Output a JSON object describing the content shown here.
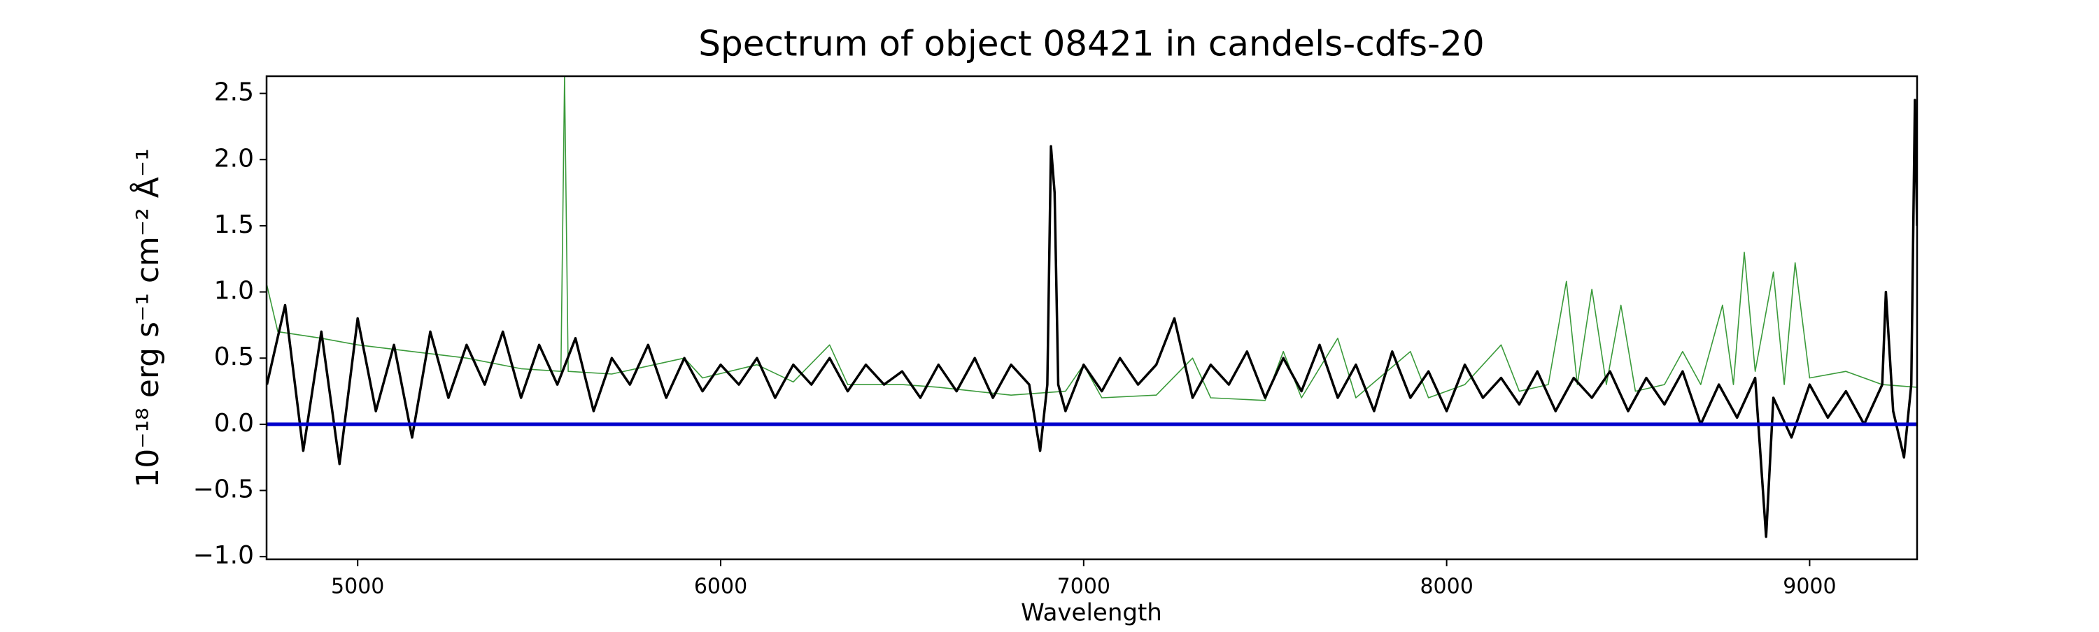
{
  "chart_data": {
    "type": "line",
    "title": "Spectrum of object 08421 in candels-cdfs-20",
    "xlabel": "Wavelength",
    "ylabel": "10⁻¹⁸ erg s⁻¹ cm⁻² Å⁻¹",
    "xlim": [
      4749,
      9296
    ],
    "ylim": [
      -1.02,
      2.63
    ],
    "xticks": [
      5000,
      6000,
      7000,
      8000,
      9000
    ],
    "yticks": [
      {
        "value": -1.0,
        "label": "−1.0"
      },
      {
        "value": -0.5,
        "label": "−0.5"
      },
      {
        "value": 0.0,
        "label": "0.0"
      },
      {
        "value": 0.5,
        "label": "0.5"
      },
      {
        "value": 1.0,
        "label": "1.0"
      },
      {
        "value": 1.5,
        "label": "1.5"
      },
      {
        "value": 2.0,
        "label": "2.0"
      },
      {
        "value": 2.5,
        "label": "2.5"
      }
    ],
    "series": [
      {
        "color": "#3a9a3a",
        "width": 1.6,
        "x": [
          4750,
          4780,
          4900,
          5000,
          5150,
          5300,
          5450,
          5560,
          5570,
          5580,
          5700,
          5900,
          5950,
          6100,
          6200,
          6300,
          6350,
          6500,
          6600,
          6700,
          6800,
          6950,
          7000,
          7050,
          7200,
          7300,
          7350,
          7500,
          7550,
          7600,
          7700,
          7750,
          7900,
          7950,
          8050,
          8150,
          8200,
          8280,
          8330,
          8360,
          8400,
          8440,
          8480,
          8520,
          8600,
          8650,
          8700,
          8760,
          8790,
          8820,
          8850,
          8900,
          8930,
          8960,
          9000,
          9100,
          9200,
          9296
        ],
        "values": [
          1.05,
          0.7,
          0.65,
          0.6,
          0.55,
          0.5,
          0.42,
          0.4,
          2.63,
          0.4,
          0.38,
          0.5,
          0.35,
          0.45,
          0.32,
          0.6,
          0.3,
          0.3,
          0.28,
          0.25,
          0.22,
          0.25,
          0.45,
          0.2,
          0.22,
          0.5,
          0.2,
          0.18,
          0.55,
          0.2,
          0.65,
          0.2,
          0.55,
          0.2,
          0.3,
          0.6,
          0.25,
          0.3,
          1.08,
          0.3,
          1.02,
          0.3,
          0.9,
          0.25,
          0.3,
          0.55,
          0.3,
          0.9,
          0.3,
          1.3,
          0.4,
          1.15,
          0.3,
          1.22,
          0.35,
          0.4,
          0.3,
          0.28
        ]
      },
      {
        "color": "#000000",
        "width": 3.5,
        "x": [
          4750,
          4800,
          4850,
          4900,
          4950,
          5000,
          5050,
          5100,
          5150,
          5200,
          5250,
          5300,
          5350,
          5400,
          5450,
          5500,
          5550,
          5600,
          5650,
          5700,
          5750,
          5800,
          5850,
          5900,
          5950,
          6000,
          6050,
          6100,
          6150,
          6200,
          6250,
          6300,
          6350,
          6400,
          6450,
          6500,
          6550,
          6600,
          6650,
          6700,
          6750,
          6800,
          6850,
          6880,
          6900,
          6910,
          6920,
          6930,
          6950,
          7000,
          7050,
          7100,
          7150,
          7200,
          7250,
          7300,
          7350,
          7400,
          7450,
          7500,
          7550,
          7600,
          7650,
          7700,
          7750,
          7800,
          7850,
          7900,
          7950,
          8000,
          8050,
          8100,
          8150,
          8200,
          8250,
          8300,
          8350,
          8400,
          8450,
          8500,
          8550,
          8600,
          8650,
          8700,
          8750,
          8800,
          8850,
          8880,
          8900,
          8950,
          9000,
          9050,
          9100,
          9150,
          9200,
          9210,
          9230,
          9260,
          9280,
          9290,
          9296
        ],
        "values": [
          0.3,
          0.9,
          -0.2,
          0.7,
          -0.3,
          0.8,
          0.1,
          0.6,
          -0.1,
          0.7,
          0.2,
          0.6,
          0.3,
          0.7,
          0.2,
          0.6,
          0.3,
          0.65,
          0.1,
          0.5,
          0.3,
          0.6,
          0.2,
          0.5,
          0.25,
          0.45,
          0.3,
          0.5,
          0.2,
          0.45,
          0.3,
          0.5,
          0.25,
          0.45,
          0.3,
          0.4,
          0.2,
          0.45,
          0.25,
          0.5,
          0.2,
          0.45,
          0.3,
          -0.2,
          0.3,
          2.1,
          1.75,
          0.3,
          0.1,
          0.45,
          0.25,
          0.5,
          0.3,
          0.45,
          0.8,
          0.2,
          0.45,
          0.3,
          0.55,
          0.2,
          0.5,
          0.25,
          0.6,
          0.2,
          0.45,
          0.1,
          0.55,
          0.2,
          0.4,
          0.1,
          0.45,
          0.2,
          0.35,
          0.15,
          0.4,
          0.1,
          0.35,
          0.2,
          0.4,
          0.1,
          0.35,
          0.15,
          0.4,
          0.0,
          0.3,
          0.05,
          0.35,
          -0.85,
          0.2,
          -0.1,
          0.3,
          0.05,
          0.25,
          0.0,
          0.3,
          1.0,
          0.1,
          -0.25,
          0.3,
          2.45,
          1.5
        ]
      },
      {
        "color": "#0000cc",
        "width": 5,
        "x": [
          4749,
          9296
        ],
        "values": [
          0,
          0
        ]
      }
    ]
  }
}
